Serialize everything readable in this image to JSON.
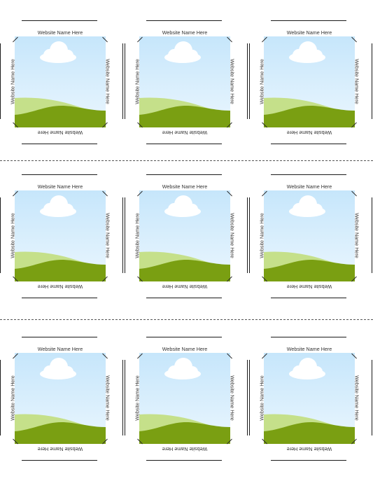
{
  "caption": "Website Name Here",
  "colors": {
    "sky_top": "#c6e6fb",
    "sky_bottom": "#eaf6fe",
    "cloud": "#ffffff",
    "hill_light": "#c5e08a",
    "hill_dark": "#7a9f12"
  },
  "cut_lines": [
    "dashed",
    "dashed"
  ],
  "cards": [
    {
      "row": 1,
      "col": 1
    },
    {
      "row": 1,
      "col": 2
    },
    {
      "row": 1,
      "col": 3
    },
    {
      "row": 2,
      "col": 1
    },
    {
      "row": 2,
      "col": 2
    },
    {
      "row": 2,
      "col": 3
    },
    {
      "row": 3,
      "col": 1
    },
    {
      "row": 3,
      "col": 2
    },
    {
      "row": 3,
      "col": 3
    }
  ]
}
